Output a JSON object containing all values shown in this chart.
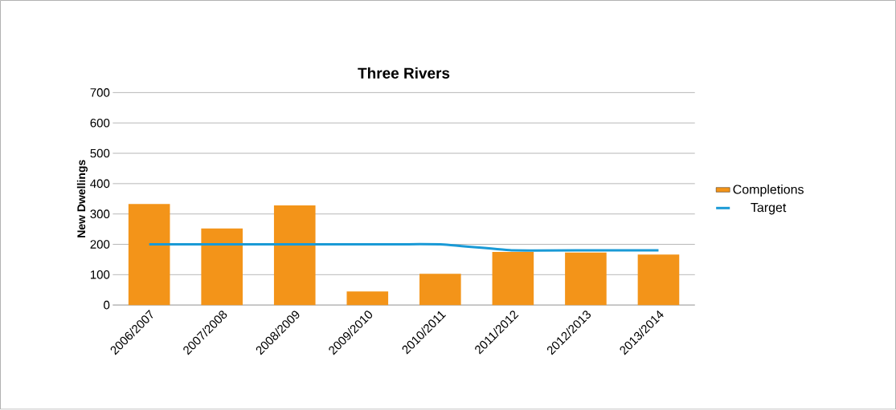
{
  "chart_data": {
    "type": "bar",
    "title": "Three Rivers",
    "ylabel": "New Dwellings",
    "categories": [
      "2006/2007",
      "2007/2008",
      "2008/2009",
      "2009/2010",
      "2010/2011",
      "2011/2012",
      "2012/2013",
      "2013/2014"
    ],
    "series": [
      {
        "name": "Completions",
        "color": "#f39419",
        "values": [
          333,
          252,
          328,
          45,
          103,
          175,
          173,
          166
        ]
      },
      {
        "name": "Target",
        "type": "line",
        "color": "#1a9ad6",
        "values": [
          200,
          200,
          200,
          200,
          200,
          180,
          180,
          180
        ]
      }
    ],
    "ylim": [
      0,
      700
    ],
    "yticks": [
      0,
      100,
      200,
      300,
      400,
      500,
      600,
      700
    ],
    "grid": "y",
    "legend": "right"
  }
}
